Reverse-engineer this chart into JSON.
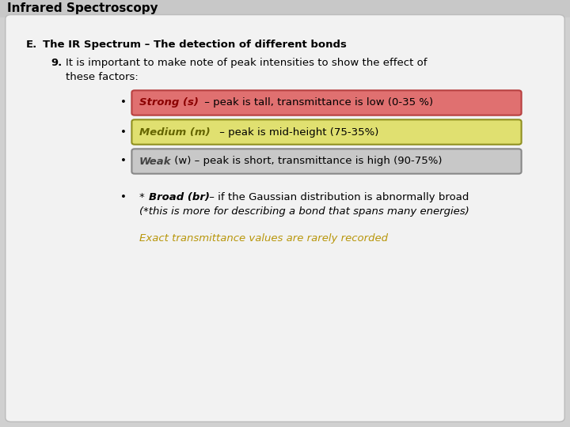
{
  "title": "Infrared Spectroscopy",
  "slide_bg": "#d0d0d0",
  "card_bg": "#f2f2f2",
  "card_border": "#bbbbbb",
  "heading_e": "E.",
  "heading_rest": "  The IR Spectrum – The detection of different bonds",
  "sub_num": "9.",
  "sub_line1": "  It is important to make note of peak intensities to show the effect of",
  "sub_line2": "  these factors:",
  "bullet1_bold": "Strong (s)",
  "bullet1_rest": " – peak is tall, transmittance is low (0-35 %)",
  "bullet1_bg": "#e07070",
  "bullet1_border": "#b84040",
  "bullet2_bold": "Medium (m)",
  "bullet2_rest": " – peak is mid-height (75-35%)",
  "bullet2_bg": "#e0e070",
  "bullet2_border": "#909020",
  "bullet3_bold": "Weak",
  "bullet3_rest": " (w) – peak is short, transmittance is high (90-75%)",
  "bullet3_bg": "#c8c8c8",
  "bullet3_border": "#888888",
  "bullet4_pre": "* ",
  "bullet4_bold": "Broad (br)",
  "bullet4_rest": " – if the Gaussian distribution is abnormally broad",
  "bullet4_line2": "(*this is more for describing a bond that spans many energies)",
  "note": "Exact transmittance values are rarely recorded",
  "note_color": "#b8960a",
  "font_size": 9.5,
  "title_font_size": 11
}
